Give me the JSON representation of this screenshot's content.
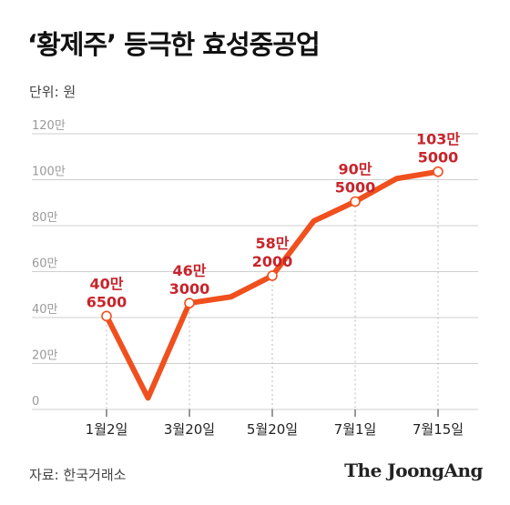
{
  "title": "‘황제주’ 등극한 효성중공업",
  "unit_label": "단위: 원",
  "source_label": "자료: 한국거래소",
  "brand_label": "The JoongAng",
  "colors": {
    "line": "#f0501e",
    "label": "#c8242b",
    "grid": "#cfcfcf",
    "marker_fill": "#ffffff"
  },
  "chart_data": {
    "type": "line",
    "title": "‘황제주’ 등극한 효성중공업",
    "xlabel": "",
    "ylabel": "",
    "ylim": [
      0,
      1200000
    ],
    "yticks": [
      {
        "value": 0,
        "label": "0"
      },
      {
        "value": 200000,
        "label": "20만"
      },
      {
        "value": 400000,
        "label": "40만"
      },
      {
        "value": 600000,
        "label": "60만"
      },
      {
        "value": 800000,
        "label": "80만"
      },
      {
        "value": 1000000,
        "label": "100만"
      },
      {
        "value": 1200000,
        "label": "120만"
      }
    ],
    "x_tick_labels": [
      "1월2일",
      "3월20일",
      "5월20일",
      "7월1일",
      "7월15일"
    ],
    "grid": "horizontal",
    "series": [
      {
        "values": [
          406500,
          50000,
          463000,
          490000,
          582000,
          820000,
          905000,
          1005000,
          1035000
        ],
        "highlight_indices": [
          0,
          2,
          4,
          6,
          8
        ]
      }
    ],
    "annotations": [
      {
        "point_index": 0,
        "line1": "40만",
        "line2": "6500"
      },
      {
        "point_index": 2,
        "line1": "46만",
        "line2": "3000"
      },
      {
        "point_index": 4,
        "line1": "58만",
        "line2": "2000"
      },
      {
        "point_index": 6,
        "line1": "90만",
        "line2": "5000"
      },
      {
        "point_index": 8,
        "line1": "103만",
        "line2": "5000"
      }
    ]
  }
}
